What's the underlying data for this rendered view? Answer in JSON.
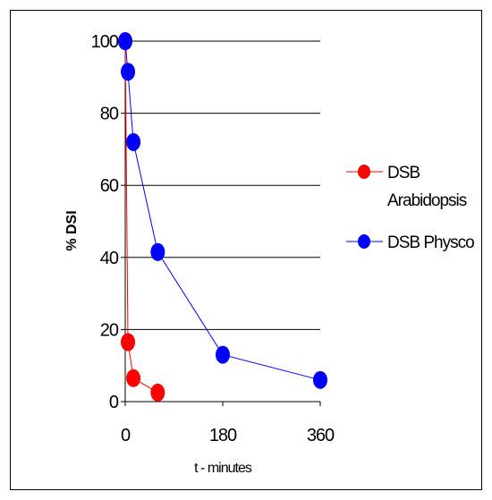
{
  "chart_data": {
    "type": "line",
    "xlabel": "t - minutes",
    "ylabel": "% DSI",
    "xlim": [
      0,
      360
    ],
    "ylim": [
      0,
      100
    ],
    "x_ticks": [
      "0",
      "180",
      "360"
    ],
    "y_ticks": [
      "0",
      "20",
      "40",
      "60",
      "80",
      "100"
    ],
    "grid": "horizontal",
    "legend_position": "right",
    "series": [
      {
        "name": "DSB Arabidopsis",
        "color": "#ff0000",
        "x": [
          0,
          5,
          15,
          60
        ],
        "y": [
          100,
          16.5,
          6.5,
          2.5
        ]
      },
      {
        "name": "DSB Physco",
        "color": "#0000ff",
        "x": [
          0,
          5,
          15,
          60,
          180,
          360
        ],
        "y": [
          100,
          91.5,
          72,
          41.5,
          13,
          6
        ]
      }
    ]
  }
}
